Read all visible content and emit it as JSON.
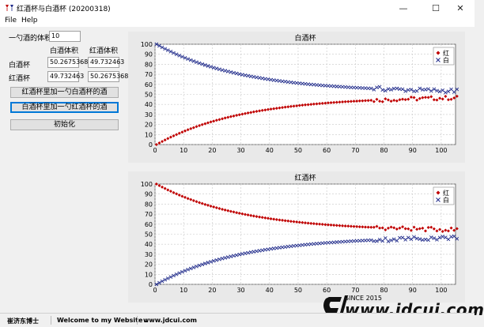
{
  "window": {
    "title": "红酒杯与白酒杯 (20200318)",
    "minimize": "—",
    "maximize": "☐",
    "close": "✕"
  },
  "menu": [
    "File",
    "Help"
  ],
  "form": {
    "spoon_label": "一勺酒的体积",
    "spoon_value": "10",
    "col_white": "白酒体积",
    "col_red": "红酒体积",
    "rows": [
      {
        "label": "白酒杯",
        "white": "50.2675368",
        "red": "49.732463"
      },
      {
        "label": "红酒杯",
        "white": "49.732463",
        "red": "50.2675368"
      }
    ]
  },
  "buttons": {
    "add_to_red": "红酒杯里加一勺白酒杯的酒",
    "add_to_white": "白酒杯里加一勺红酒杯的酒",
    "init": "初始化"
  },
  "colors": {
    "red_series": "#c00000",
    "white_series": "#1f2a8a",
    "plot_bg": "#ffffff",
    "panel_bg": "#e9e9e9"
  },
  "chart_data": [
    {
      "type": "scatter",
      "title": "白酒杯",
      "xlim": [
        0,
        105
      ],
      "ylim": [
        0,
        100
      ],
      "xticks": [
        0,
        10,
        20,
        30,
        40,
        50,
        60,
        70,
        80,
        90,
        100
      ],
      "yticks": [
        0,
        10,
        20,
        30,
        40,
        50,
        60,
        70,
        80,
        90,
        100
      ],
      "grid": true,
      "legend": "top-right",
      "series": [
        {
          "name": "红",
          "marker": "diamond",
          "start": 0,
          "end": 48,
          "jitter": 2
        },
        {
          "name": "白",
          "marker": "x",
          "start": 100,
          "end": 52,
          "jitter": 2
        }
      ],
      "points": 106
    },
    {
      "type": "scatter",
      "title": "红酒杯",
      "xlim": [
        0,
        105
      ],
      "ylim": [
        0,
        100
      ],
      "xticks": [
        0,
        10,
        20,
        30,
        40,
        50,
        60,
        70,
        80,
        90,
        100
      ],
      "yticks": [
        0,
        10,
        20,
        30,
        40,
        50,
        60,
        70,
        80,
        90,
        100
      ],
      "grid": true,
      "legend": "top-right",
      "series": [
        {
          "name": "红",
          "marker": "diamond",
          "start": 100,
          "end": 53,
          "jitter": 2
        },
        {
          "name": "白",
          "marker": "x",
          "start": 0,
          "end": 48,
          "jitter": 2
        }
      ],
      "points": 106
    }
  ],
  "status": {
    "author": "崔济东博士",
    "welcome": "Welcome to my Website :",
    "site": "www.jdcui.com"
  },
  "watermark": {
    "text": "www.jdcui.com",
    "since": "SINCE 2015"
  }
}
